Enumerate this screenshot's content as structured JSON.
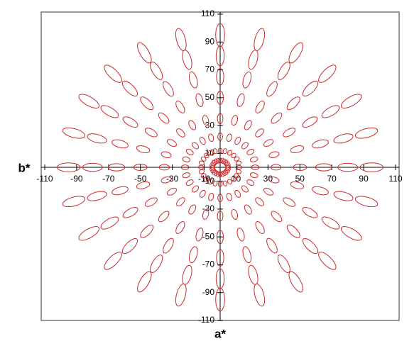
{
  "chart_data": {
    "type": "ellipse-rays",
    "x_label": "a*",
    "y_label": "b*",
    "xlim": [
      -110,
      110
    ],
    "ylim": [
      -110,
      110
    ],
    "xticks": [
      -110,
      -90,
      -70,
      -50,
      -30,
      -10,
      10,
      30,
      50,
      70,
      90,
      110
    ],
    "yticks": [
      -110,
      -90,
      -70,
      -50,
      -30,
      -10,
      10,
      30,
      50,
      70,
      90,
      110
    ],
    "color": "#cc2a2a",
    "chroma": [
      5,
      12,
      22,
      35,
      50,
      65,
      80,
      95
    ],
    "major": [
      1.6,
      1.6,
      2.4,
      3.2,
      4.2,
      5.2,
      6.2,
      7.2
    ],
    "minor": [
      1.2,
      1.4,
      1.7,
      2.0,
      2.3,
      2.6,
      2.9,
      3.2
    ],
    "series": [
      {
        "hue": 0
      },
      {
        "hue": 15
      },
      {
        "hue": 30
      },
      {
        "hue": 45
      },
      {
        "hue": 60
      },
      {
        "hue": 75
      },
      {
        "hue": 90
      },
      {
        "hue": 105
      },
      {
        "hue": 120
      },
      {
        "hue": 135
      },
      {
        "hue": 150
      },
      {
        "hue": 165
      },
      {
        "hue": 180
      },
      {
        "hue": 195
      },
      {
        "hue": 210
      },
      {
        "hue": 225
      },
      {
        "hue": 240
      },
      {
        "hue": 255
      },
      {
        "hue": 270
      },
      {
        "hue": 285
      },
      {
        "hue": 300
      },
      {
        "hue": 315
      },
      {
        "hue": 330
      },
      {
        "hue": 345
      }
    ]
  }
}
